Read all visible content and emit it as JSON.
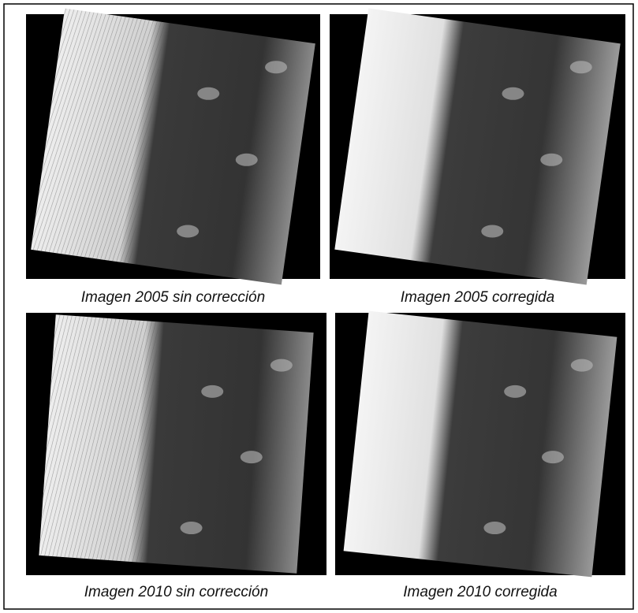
{
  "figure": {
    "panels": [
      {
        "caption": "Imagen 2005 sin corrección"
      },
      {
        "caption": "Imagen 2005 corregida"
      },
      {
        "caption": "Imagen 2010 sin corrección"
      },
      {
        "caption": "Imagen 2010 corregida"
      }
    ]
  }
}
